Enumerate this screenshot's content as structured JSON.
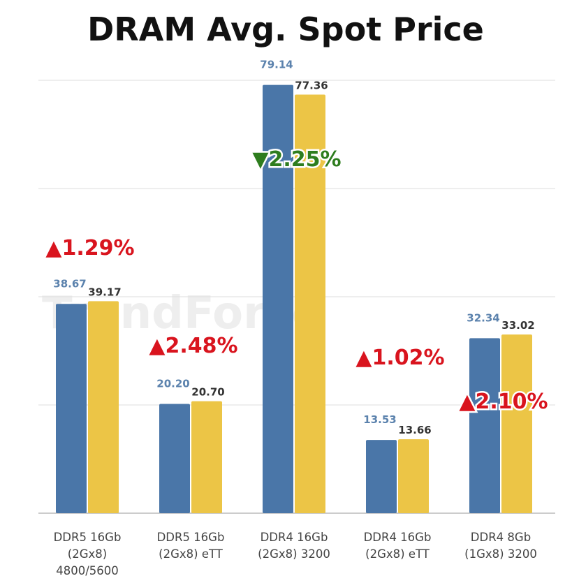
{
  "chart_data": {
    "type": "bar",
    "title": "DRAM Avg. Spot Price",
    "watermark": "TrendForce",
    "categories": [
      [
        "DDR5 16Gb",
        "(2Gx8)",
        "4800/5600"
      ],
      [
        "DDR5 16Gb",
        "(2Gx8) eTT"
      ],
      [
        "DDR4 16Gb",
        "(2Gx8) 3200"
      ],
      [
        "DDR4 16Gb",
        "(2Gx8) eTT"
      ],
      [
        "DDR4 8Gb",
        "(1Gx8) 3200"
      ]
    ],
    "series": [
      {
        "values": [
          38.67,
          20.2,
          79.14,
          13.53,
          32.34
        ],
        "labels": [
          "38.67",
          "20.20",
          "79.14",
          "13.53",
          "32.34"
        ],
        "color": "#4a76a8",
        "label_color": "#5b82ad"
      },
      {
        "values": [
          39.17,
          20.7,
          77.36,
          13.66,
          33.02
        ],
        "labels": [
          "39.17",
          "20.70",
          "77.36",
          "13.66",
          "33.02"
        ],
        "color": "#ecc546",
        "label_color": "#333333"
      }
    ],
    "annotations": [
      {
        "text": "▲1.29%",
        "direction": "up",
        "color": "#d9141e"
      },
      {
        "text": "▲2.48%",
        "direction": "up",
        "color": "#d9141e"
      },
      {
        "text": "▼2.25%",
        "direction": "down",
        "color": "#2e7d1e"
      },
      {
        "text": "▲1.02%",
        "direction": "up",
        "color": "#d9141e"
      },
      {
        "text": "▲2.10%",
        "direction": "up",
        "color": "#d9141e"
      }
    ],
    "ylim": [
      0,
      80
    ],
    "yticks": [
      0,
      20,
      40,
      60,
      80
    ],
    "ytick_labels_shown": false,
    "grid": true,
    "legend": "none"
  }
}
